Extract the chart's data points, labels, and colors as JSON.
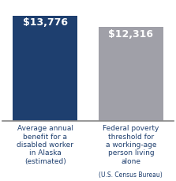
{
  "categories": [
    "Average annual\nbenefit for a\na disabled worker\nin Alaska\n(estimated)",
    "Federal poverty\nthreshold for\na working-age\nperson living\nalone"
  ],
  "category_suffix": [
    "",
    "(U.S. Census Bureau)"
  ],
  "values": [
    13776,
    12316
  ],
  "labels": [
    "$13,776",
    "$12,316"
  ],
  "bar_colors": [
    "#1e3f6f",
    "#a0a0a8"
  ],
  "ylim": [
    0,
    15500
  ],
  "background_color": "#ffffff",
  "label_color": "#ffffff",
  "xlabel_color": "#1e3f6f",
  "label_fontsize": 9,
  "xlabel_fontsize": 6.5,
  "suffix_fontsize": 5.5
}
